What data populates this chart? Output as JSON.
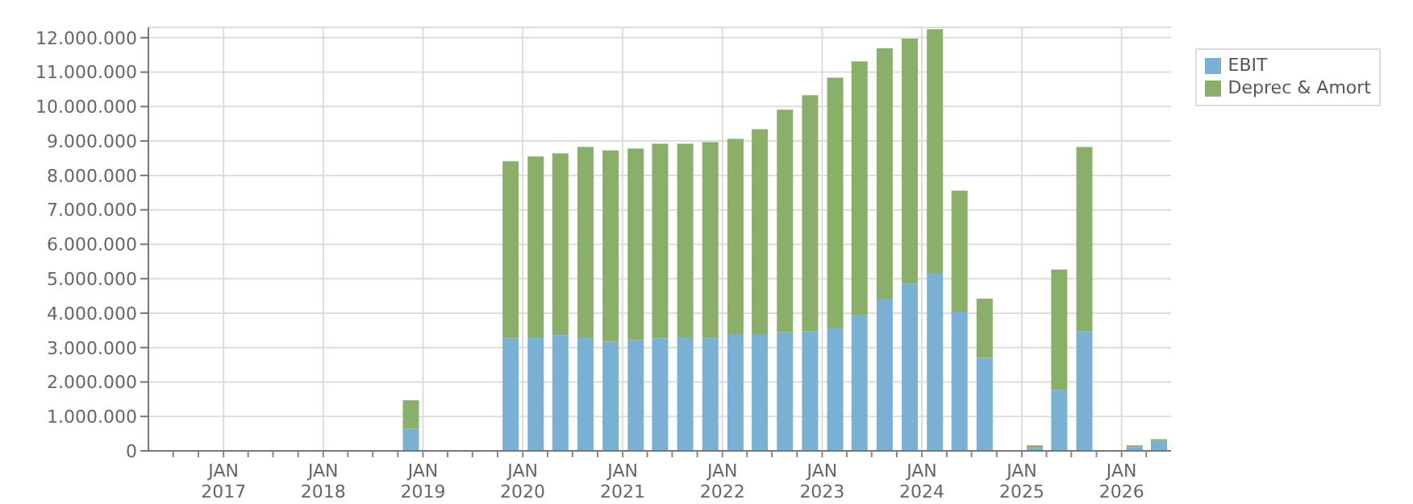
{
  "chart_data": {
    "type": "bar",
    "stacked": true,
    "x": [
      "2018-11-15",
      "2019-11-15",
      "2020-02-15",
      "2020-05-15",
      "2020-08-15",
      "2020-11-15",
      "2021-02-15",
      "2021-05-15",
      "2021-08-15",
      "2021-11-15",
      "2022-02-15",
      "2022-05-15",
      "2022-08-15",
      "2022-11-15",
      "2023-02-15",
      "2023-05-15",
      "2023-08-15",
      "2023-11-15",
      "2024-02-15",
      "2024-05-15",
      "2024-08-15",
      "2025-02-15",
      "2025-05-15",
      "2025-08-15",
      "2026-02-15",
      "2026-05-15"
    ],
    "series": [
      {
        "name": "EBIT",
        "color": "#7ab0d4",
        "values": [
          640000,
          3270000,
          3300000,
          3360000,
          3300000,
          3170000,
          3220000,
          3270000,
          3300000,
          3270000,
          3390000,
          3390000,
          3450000,
          3480000,
          3580000,
          3950000,
          4420000,
          4860000,
          5170000,
          4020000,
          2700000,
          80000,
          1770000,
          3480000,
          110000,
          300000
        ]
      },
      {
        "name": "Deprec & Amort",
        "color": "#8aaf69",
        "values": [
          830000,
          5140000,
          5250000,
          5280000,
          5530000,
          5560000,
          5560000,
          5650000,
          5620000,
          5700000,
          5670000,
          5950000,
          6460000,
          6850000,
          7260000,
          7360000,
          7270000,
          7110000,
          7080000,
          3540000,
          1720000,
          80000,
          3500000,
          5350000,
          50000,
          40000
        ]
      }
    ],
    "xlim": [
      "2016-04-01",
      "2026-07-01"
    ],
    "xticks": [
      {
        "value": "2016-07-01",
        "label": null
      },
      {
        "value": "2016-10-01",
        "label": null
      },
      {
        "value": "2017-01-01",
        "label": "JAN 2017"
      },
      {
        "value": "2017-04-01",
        "label": null
      },
      {
        "value": "2017-07-01",
        "label": null
      },
      {
        "value": "2017-10-01",
        "label": null
      },
      {
        "value": "2018-01-01",
        "label": "JAN 2018"
      },
      {
        "value": "2018-04-01",
        "label": null
      },
      {
        "value": "2018-07-01",
        "label": null
      },
      {
        "value": "2018-10-01",
        "label": null
      },
      {
        "value": "2019-01-01",
        "label": "JAN 2019"
      },
      {
        "value": "2019-04-01",
        "label": null
      },
      {
        "value": "2019-07-01",
        "label": null
      },
      {
        "value": "2019-10-01",
        "label": null
      },
      {
        "value": "2020-01-01",
        "label": "JAN 2020"
      },
      {
        "value": "2020-04-01",
        "label": null
      },
      {
        "value": "2020-07-01",
        "label": null
      },
      {
        "value": "2020-10-01",
        "label": null
      },
      {
        "value": "2021-01-01",
        "label": "JAN 2021"
      },
      {
        "value": "2021-04-01",
        "label": null
      },
      {
        "value": "2021-07-01",
        "label": null
      },
      {
        "value": "2021-10-01",
        "label": null
      },
      {
        "value": "2022-01-01",
        "label": "JAN 2022"
      },
      {
        "value": "2022-04-01",
        "label": null
      },
      {
        "value": "2022-07-01",
        "label": null
      },
      {
        "value": "2022-10-01",
        "label": null
      },
      {
        "value": "2023-01-01",
        "label": "JAN 2023"
      },
      {
        "value": "2023-04-01",
        "label": null
      },
      {
        "value": "2023-07-01",
        "label": null
      },
      {
        "value": "2023-10-01",
        "label": null
      },
      {
        "value": "2024-01-01",
        "label": "JAN 2024"
      },
      {
        "value": "2024-04-01",
        "label": null
      },
      {
        "value": "2024-07-01",
        "label": null
      },
      {
        "value": "2024-10-01",
        "label": null
      },
      {
        "value": "2025-01-01",
        "label": "JAN 2025"
      },
      {
        "value": "2025-04-01",
        "label": null
      },
      {
        "value": "2025-07-01",
        "label": null
      },
      {
        "value": "2025-10-01",
        "label": null
      },
      {
        "value": "2026-01-01",
        "label": "JAN 2026"
      },
      {
        "value": "2026-04-01",
        "label": null
      }
    ],
    "ylim": [
      0,
      12300000
    ],
    "yticks": [
      {
        "value": 0,
        "label": "0"
      },
      {
        "value": 1000000,
        "label": "1.000.000"
      },
      {
        "value": 2000000,
        "label": "2.000.000"
      },
      {
        "value": 3000000,
        "label": "3.000.000"
      },
      {
        "value": 4000000,
        "label": "4.000.000"
      },
      {
        "value": 5000000,
        "label": "5.000.000"
      },
      {
        "value": 6000000,
        "label": "6.000.000"
      },
      {
        "value": 7000000,
        "label": "7.000.000"
      },
      {
        "value": 8000000,
        "label": "8.000.000"
      },
      {
        "value": 9000000,
        "label": "9.000.000"
      },
      {
        "value": 10000000,
        "label": "10.000.000"
      },
      {
        "value": 11000000,
        "label": "11.000.000"
      },
      {
        "value": 12000000,
        "label": "12.000.000"
      }
    ],
    "grid": true,
    "legend": "top right"
  }
}
